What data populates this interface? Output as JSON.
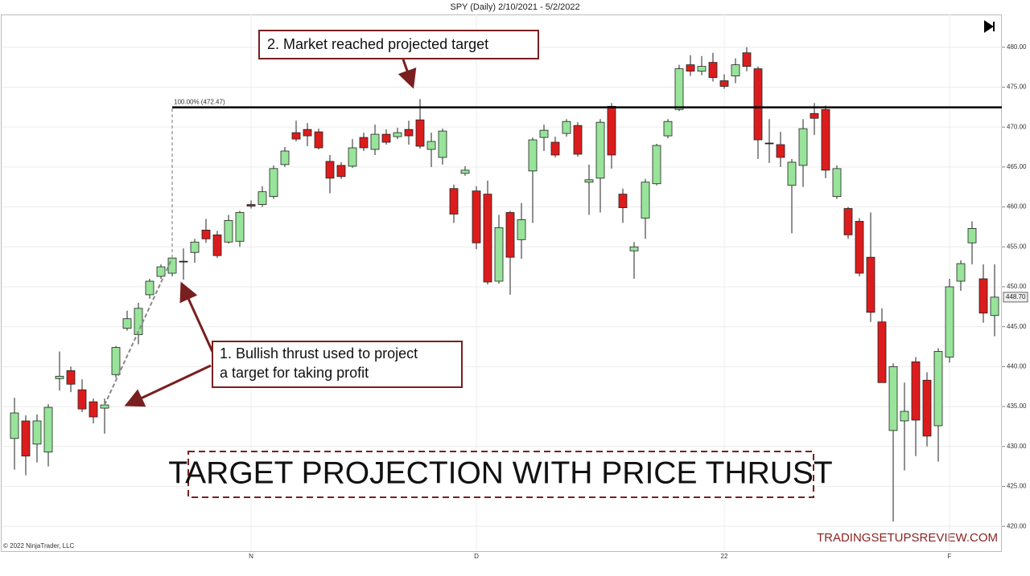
{
  "chart_data": {
    "type": "candlestick",
    "title": "SPY (Daily)  2/10/2021 - 5/2/2022",
    "copyright": "© 2022 NinjaTrader, LLC",
    "watermark": "TRADINGSETUPSREVIEW.COM",
    "headline": "TARGET PROJECTION WITH PRICE THRUST",
    "annotations": [
      {
        "lines": [
          "1. Bullish thrust used to project",
          "a target for taking profit"
        ]
      },
      {
        "lines": [
          "2. Market reached projected target"
        ]
      }
    ],
    "target": {
      "value": 472.47,
      "label": "100.00% (472.47)"
    },
    "last_price_label": "448.70",
    "up_color": "#98e49a",
    "down_color": "#dc1c1c",
    "grid": true,
    "categories": [
      null,
      null,
      null,
      null,
      null,
      null,
      null,
      null,
      null,
      null,
      null,
      null,
      null,
      null,
      null,
      null,
      null,
      null,
      null,
      null,
      null,
      "N",
      null,
      null,
      null,
      null,
      null,
      null,
      null,
      null,
      null,
      null,
      null,
      null,
      null,
      null,
      null,
      null,
      null,
      null,
      null,
      "D",
      null,
      null,
      null,
      null,
      null,
      null,
      null,
      null,
      null,
      null,
      null,
      null,
      null,
      null,
      null,
      null,
      null,
      null,
      null,
      null,
      null,
      "22",
      null,
      null,
      null,
      null,
      null,
      null,
      null,
      null,
      null,
      null,
      null,
      null,
      null,
      null,
      null,
      null,
      null,
      null,
      null,
      "F",
      null,
      null,
      null,
      null
    ],
    "open": [
      431,
      433.2,
      430.3,
      429.3,
      438.5,
      439.5,
      437.1,
      435.6,
      434.8,
      439,
      444.8,
      444,
      449,
      451.3,
      451.7,
      453.2,
      454.3,
      457.1,
      456.5,
      455.6,
      455.7,
      460.3,
      460.3,
      461.3,
      465.3,
      469.3,
      469.7,
      469.4,
      465.7,
      465.2,
      465.1,
      468.7,
      467.2,
      469.1,
      468.8,
      469.7,
      470.9,
      467.2,
      466.2,
      462.3,
      464.2,
      462,
      461.6,
      450.7,
      459.3,
      455.9,
      464.5,
      468.7,
      468.1,
      469.2,
      470.2,
      463.1,
      463.6,
      472.6,
      461.6,
      454.5,
      458.6,
      462.9,
      468.9,
      472.2,
      477.8,
      477,
      478.1,
      475.8,
      476.4,
      479.3,
      477.3,
      468,
      467.8,
      462.7,
      465.2,
      471.7,
      472.2,
      461.3,
      459.8,
      458.2,
      453.7,
      445.6,
      432,
      433.2,
      440.6,
      438.3,
      432.6,
      441.2,
      450.7,
      455.5,
      451,
      446.4
    ],
    "high": [
      436.1,
      433.9,
      434,
      435.3,
      441.9,
      440,
      438.4,
      436,
      436,
      442.6,
      447,
      448,
      451,
      452.8,
      454,
      454.8,
      456,
      458.5,
      457,
      459,
      459.5,
      460.8,
      462.6,
      465.2,
      467.5,
      470.8,
      470.5,
      469.8,
      466.5,
      465.6,
      468.5,
      469.3,
      470.3,
      469.7,
      469.9,
      470.8,
      473.5,
      469.3,
      469.8,
      462.8,
      465.1,
      462.6,
      463.3,
      459,
      459.5,
      460.5,
      468.7,
      470.3,
      468.8,
      471,
      470.6,
      465.3,
      471,
      473,
      462.3,
      455.6,
      463.5,
      467.9,
      471,
      477.8,
      479,
      478.9,
      479.3,
      476.6,
      478.6,
      480,
      477.6,
      471,
      469.4,
      466,
      471,
      473,
      472.7,
      465.2,
      460,
      458.6,
      459.3,
      447.3,
      440.4,
      438,
      441.2,
      439.3,
      442.3,
      451,
      453.3,
      458.2,
      452.8,
      452.8
    ],
    "low": [
      427.1,
      426.4,
      428,
      427.5,
      437,
      436.8,
      434.3,
      432.9,
      431.6,
      438.6,
      444.5,
      442.8,
      448.5,
      451,
      451.3,
      450.9,
      453,
      455.5,
      453.6,
      455.4,
      455,
      459.8,
      460,
      461,
      465,
      468.2,
      467.6,
      467.2,
      461.7,
      463.5,
      464.9,
      467,
      466.5,
      467.8,
      468.5,
      467.8,
      467.3,
      465,
      465.3,
      458,
      463.9,
      454.7,
      450.3,
      450.4,
      449,
      453.5,
      458,
      467,
      466.2,
      468.8,
      466.3,
      459,
      459.3,
      464.8,
      458,
      451,
      456,
      462.7,
      468.6,
      472,
      476.4,
      476.5,
      475.7,
      474.8,
      475.5,
      477,
      466,
      465.5,
      465,
      456.7,
      462.5,
      469,
      463.6,
      461,
      456,
      451.3,
      445.6,
      438,
      420.6,
      427,
      428.8,
      430,
      428.1,
      440.5,
      449.5,
      452.8,
      445.5,
      443.8
    ],
    "close": [
      434.2,
      428.8,
      433.2,
      434.9,
      438.8,
      437.8,
      434.7,
      433.7,
      435.2,
      442.4,
      446,
      447.3,
      450.7,
      452.5,
      453.6,
      453.2,
      455.6,
      456,
      453.9,
      458.3,
      459.3,
      460.1,
      461.9,
      464.8,
      467,
      468.5,
      468.9,
      467.4,
      463.6,
      463.8,
      467.4,
      467.4,
      469.1,
      468.1,
      469.3,
      468.9,
      467.6,
      468.2,
      469.5,
      459.1,
      464.6,
      455.5,
      450.6,
      457.4,
      453.7,
      458.4,
      468.4,
      469.6,
      466.5,
      470.7,
      466.6,
      463.4,
      470.6,
      466.5,
      459.9,
      455,
      463.1,
      467.7,
      470.7,
      477.3,
      477,
      477.6,
      476.2,
      475.1,
      477.8,
      477.6,
      468.4,
      468,
      466.2,
      465.6,
      469.8,
      471.1,
      464.6,
      464.8,
      456.5,
      451.7,
      446.8,
      438,
      440,
      434.4,
      433.3,
      431.3,
      441.9,
      450,
      452.9,
      457.3,
      446.7,
      448.7
    ],
    "ylim": [
      416.9,
      484.1
    ],
    "yticks": [
      {
        "value": 420,
        "label": "420.00"
      },
      {
        "value": 425,
        "label": "425.00"
      },
      {
        "value": 430,
        "label": "430.00"
      },
      {
        "value": 435,
        "label": "435.00"
      },
      {
        "value": 440,
        "label": "440.00"
      },
      {
        "value": 445,
        "label": "445.00"
      },
      {
        "value": 450,
        "label": "450.00"
      },
      {
        "value": 455,
        "label": "455.00"
      },
      {
        "value": 460,
        "label": "460.00"
      },
      {
        "value": 465,
        "label": "465.00"
      },
      {
        "value": 470,
        "label": "470.00"
      },
      {
        "value": 475,
        "label": "475.00"
      },
      {
        "value": 480,
        "label": "480.00"
      }
    ]
  }
}
